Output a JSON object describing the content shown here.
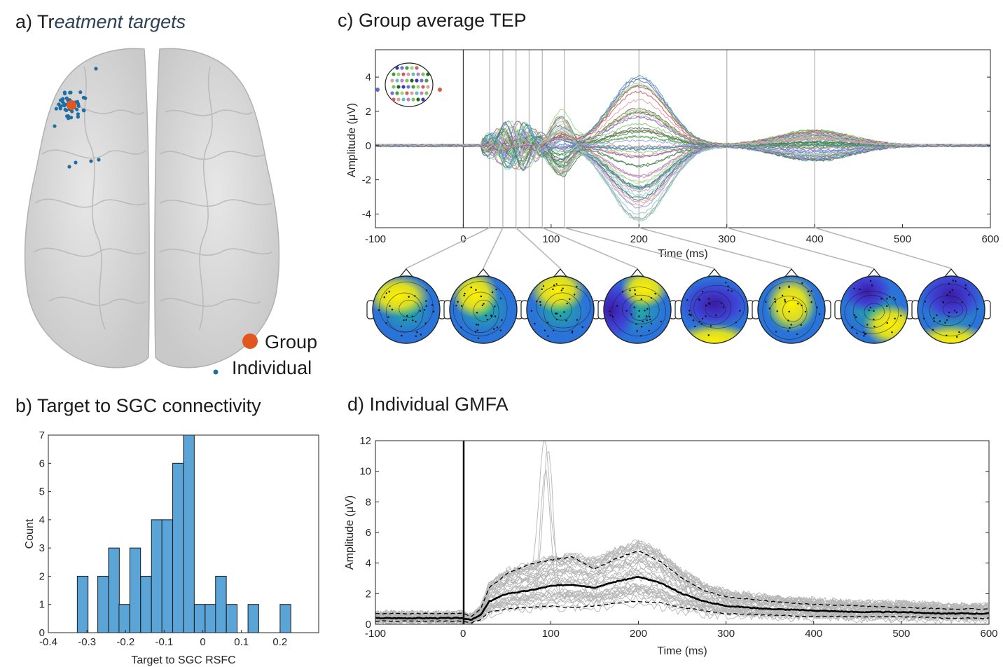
{
  "panels": {
    "a": {
      "title_prefix": "a) Tr",
      "title_italic": "eatment targets",
      "legend": {
        "group": "Group",
        "individual": "Individual"
      },
      "colors": {
        "group": "#e2571d",
        "individual": "#1f6ea3"
      }
    },
    "b": {
      "title": "b) Target to SGC connectivity"
    },
    "c": {
      "title": "c) Group average TEP"
    },
    "d": {
      "title": "d) Individual GMFA"
    }
  },
  "chart_data": [
    {
      "id": "histogram",
      "type": "bar",
      "xlabel": "Target to SGC RSFC",
      "ylabel": "Count",
      "xlim": [
        -0.4,
        0.3
      ],
      "ylim": [
        0,
        7
      ],
      "xticks": [
        -0.4,
        -0.3,
        -0.2,
        -0.1,
        0,
        0.1,
        0.2
      ],
      "xtick_labels": [
        "-0.4",
        "-0.3",
        "-0.2",
        "-0.1",
        "0",
        "0.1",
        "0.2"
      ],
      "yticks": [
        0,
        1,
        2,
        3,
        4,
        5,
        6,
        7
      ],
      "bin_width": 0.0278,
      "bin_starts": [
        -0.325,
        -0.272,
        -0.244,
        -0.217,
        -0.189,
        -0.161,
        -0.133,
        -0.106,
        -0.078,
        -0.05,
        -0.022,
        0.006,
        0.033,
        0.061,
        0.117,
        0.2
      ],
      "values": [
        2,
        2,
        3,
        1,
        3,
        2,
        4,
        4,
        6,
        7,
        1,
        1,
        2,
        1,
        1,
        1
      ],
      "color": "#5aa4d8"
    },
    {
      "id": "tep",
      "type": "line",
      "xlabel": "Time (ms)",
      "ylabel": "Amplitude (μV)",
      "xlim": [
        -100,
        600
      ],
      "ylim": [
        -4.8,
        5.6
      ],
      "xticks": [
        -100,
        0,
        100,
        200,
        300,
        400,
        500,
        600
      ],
      "yticks": [
        -4,
        -2,
        0,
        2,
        4
      ],
      "topo_times": [
        30,
        45,
        60,
        75,
        90,
        115,
        200,
        300,
        400
      ],
      "grid": "vertical at topo times",
      "note": "many channel traces coloured by scalp position"
    },
    {
      "id": "gmfa",
      "type": "line",
      "xlabel": "Time (ms)",
      "ylabel": "Amplitude (μV)",
      "xlim": [
        -100,
        600
      ],
      "ylim": [
        0,
        12
      ],
      "xticks": [
        -100,
        0,
        100,
        200,
        300,
        400,
        500,
        600
      ],
      "yticks": [
        0,
        2,
        4,
        6,
        8,
        10,
        12
      ],
      "series": [
        {
          "x": [
            -100,
            0,
            10,
            20,
            30,
            50,
            75,
            100,
            125,
            150,
            175,
            200,
            225,
            250,
            275,
            300,
            350,
            400,
            450,
            500,
            550,
            600
          ],
          "values": [
            0.4,
            0.4,
            0.3,
            0.6,
            1.5,
            2.0,
            2.2,
            2.5,
            2.6,
            2.4,
            2.8,
            3.1,
            2.7,
            2.0,
            1.5,
            1.2,
            1.0,
            0.9,
            0.8,
            0.8,
            0.7,
            0.7
          ]
        },
        {
          "x": [
            -100,
            0,
            10,
            20,
            30,
            50,
            75,
            100,
            125,
            150,
            175,
            200,
            225,
            250,
            275,
            300,
            350,
            400,
            450,
            500,
            550,
            600
          ],
          "values": [
            0.7,
            0.7,
            0.5,
            1.0,
            2.4,
            3.3,
            3.9,
            4.2,
            4.4,
            3.6,
            4.3,
            4.8,
            4.1,
            3.0,
            2.2,
            1.8,
            1.5,
            1.3,
            1.2,
            1.1,
            1.0,
            1.0
          ]
        },
        {
          "x": [
            -100,
            0,
            10,
            20,
            30,
            50,
            75,
            100,
            125,
            150,
            175,
            200,
            225,
            250,
            275,
            300,
            350,
            400,
            450,
            500,
            550,
            600
          ],
          "values": [
            0.2,
            0.2,
            0.1,
            0.3,
            0.8,
            1.0,
            1.1,
            1.2,
            1.1,
            1.2,
            1.4,
            1.5,
            1.4,
            1.1,
            0.9,
            0.7,
            0.6,
            0.5,
            0.5,
            0.5,
            0.4,
            0.4
          ]
        }
      ]
    }
  ]
}
